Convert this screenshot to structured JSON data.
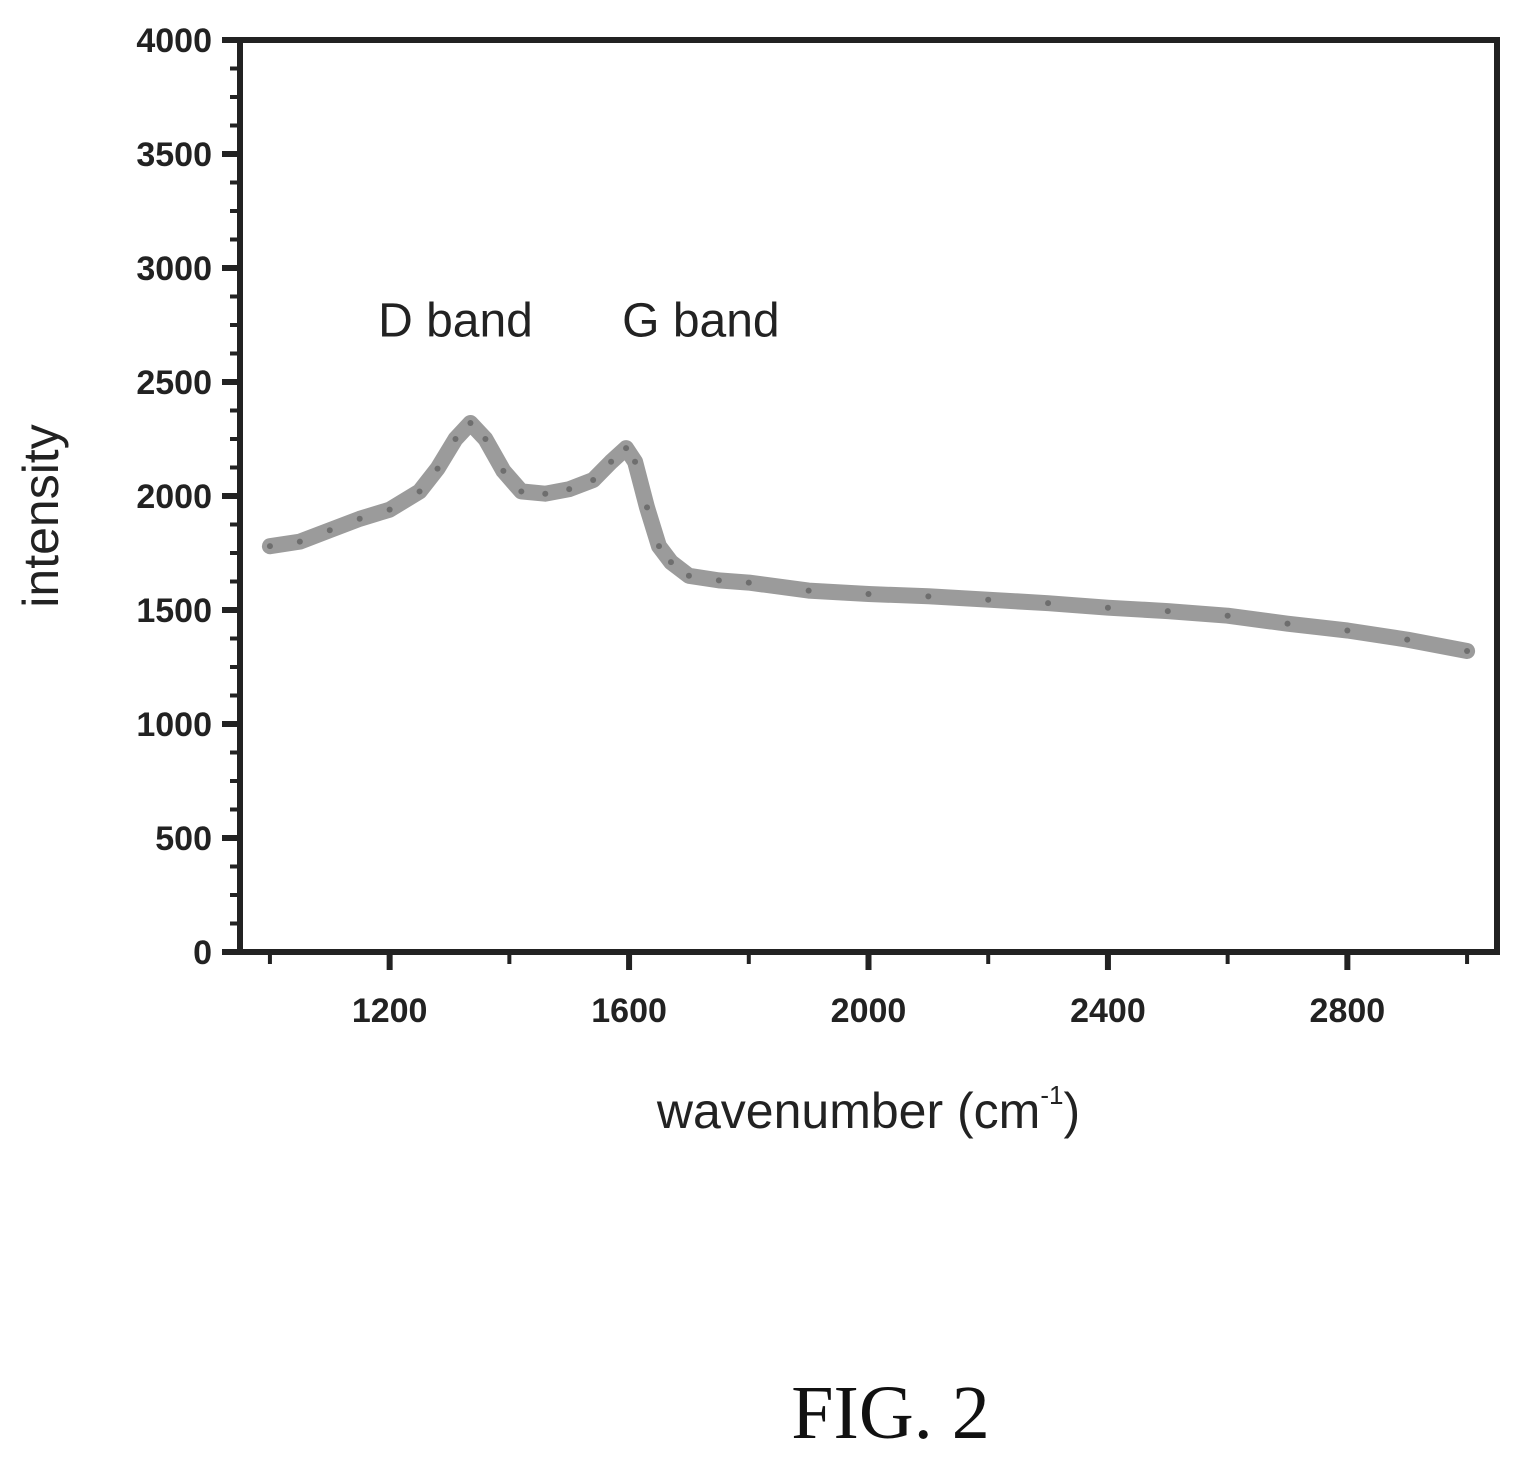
{
  "figure": {
    "caption": "FIG. 2"
  },
  "chart_data": {
    "type": "line",
    "title": "",
    "xlabel": "wavenumber (cm",
    "xlabel_sup": "-1",
    "xlabel_close": ")",
    "ylabel": "intensity",
    "xlim": [
      950,
      3050
    ],
    "ylim": [
      0,
      4000
    ],
    "x_ticks": [
      1200,
      1600,
      2000,
      2400,
      2800
    ],
    "y_ticks": [
      0,
      500,
      1000,
      1500,
      2000,
      2500,
      3000,
      3500,
      4000
    ],
    "grid": false,
    "line_color": "#8a8a8a",
    "annotations": [
      {
        "text": "D band",
        "x": 1310,
        "y": 2700
      },
      {
        "text": "G band",
        "x": 1720,
        "y": 2700
      }
    ],
    "series": [
      {
        "x": [
          1000,
          1050,
          1100,
          1150,
          1200,
          1250,
          1280,
          1310,
          1335,
          1360,
          1390,
          1420,
          1460,
          1500,
          1540,
          1570,
          1595,
          1610,
          1630,
          1650,
          1670,
          1700,
          1750,
          1800,
          1900,
          2000,
          2100,
          2200,
          2300,
          2400,
          2500,
          2600,
          2700,
          2800,
          2900,
          3000
        ],
        "y": [
          1780,
          1800,
          1850,
          1900,
          1940,
          2020,
          2120,
          2250,
          2320,
          2250,
          2110,
          2020,
          2010,
          2030,
          2070,
          2150,
          2210,
          2150,
          1950,
          1780,
          1710,
          1650,
          1630,
          1620,
          1585,
          1570,
          1560,
          1545,
          1530,
          1510,
          1495,
          1475,
          1440,
          1410,
          1370,
          1320
        ]
      }
    ]
  }
}
